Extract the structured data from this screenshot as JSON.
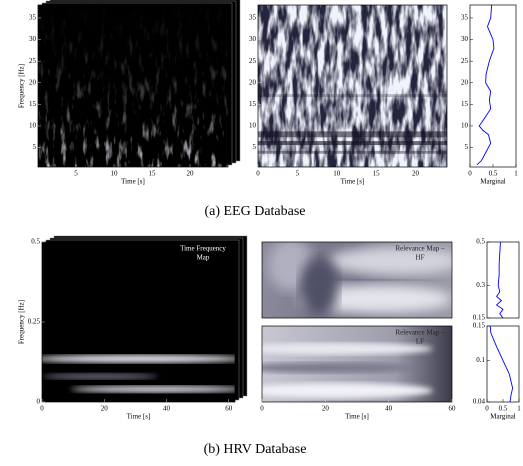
{
  "chart_data": [
    {
      "type": "heatmap",
      "xlim": [
        0,
        25
      ],
      "ylim": [
        0.5,
        38
      ],
      "xticks": [
        5,
        10,
        15,
        20
      ],
      "yticks": [
        5,
        10,
        15,
        20,
        25,
        30,
        35
      ],
      "xlabel": "Time [s]",
      "ylabel": "Frequency [Hz]"
    },
    {
      "type": "heatmap",
      "xlim": [
        0,
        24
      ],
      "ylim": [
        0.5,
        38
      ],
      "xticks": [
        0,
        5,
        10,
        15,
        20
      ],
      "yticks": [
        5,
        10,
        15,
        20,
        25,
        30,
        35
      ],
      "xlabel": "Time [s]"
    },
    {
      "type": "line",
      "orientation": "horizontal",
      "xlim": [
        0,
        1
      ],
      "ylim": [
        0.5,
        38
      ],
      "xticks": [
        0,
        0.5,
        1
      ],
      "yticks": [
        5,
        10,
        15,
        20,
        25,
        30,
        35
      ],
      "xlabel": "Marginal",
      "series": [
        {
          "color": "#0000ff",
          "x": [
            1,
            2,
            4,
            6,
            8,
            9,
            10,
            12,
            14,
            16,
            18,
            20,
            22,
            25,
            28,
            30,
            33,
            35,
            38
          ],
          "values": [
            0.15,
            0.25,
            0.35,
            0.45,
            0.4,
            0.28,
            0.2,
            0.33,
            0.45,
            0.42,
            0.45,
            0.34,
            0.35,
            0.42,
            0.52,
            0.5,
            0.38,
            0.45,
            0.47
          ]
        }
      ]
    },
    {
      "type": "heatmap",
      "xlim": [
        0,
        62
      ],
      "ylim": [
        0,
        0.5
      ],
      "xticks": [
        0,
        20,
        40,
        60
      ],
      "yticks": [
        0,
        0.25,
        0.5
      ],
      "xlabel": "Time [s]",
      "ylabel": "Frequency [Hz]",
      "annotation": [
        "Time Frequency",
        "Map"
      ]
    },
    {
      "type": "heatmap",
      "xlim": [
        0,
        60
      ],
      "ylim": [
        0.15,
        0.5
      ],
      "annotation": [
        "Relevance Map –",
        "HF"
      ]
    },
    {
      "type": "heatmap",
      "xlim": [
        0,
        60
      ],
      "ylim": [
        0.04,
        0.15
      ],
      "xticks": [
        0,
        20,
        40,
        60
      ],
      "xlabel": "Time [s]",
      "annotation": [
        "Relevance Map –",
        "LF"
      ]
    },
    {
      "type": "line",
      "orientation": "horizontal",
      "xlim": [
        0,
        1
      ],
      "ylim": [
        0.15,
        0.5
      ],
      "yticks": [
        0.15,
        0.3,
        0.5
      ],
      "series": [
        {
          "color": "#0000ff",
          "x": [
            0.15,
            0.17,
            0.19,
            0.21,
            0.23,
            0.25,
            0.27,
            0.3,
            0.35,
            0.4,
            0.45,
            0.5
          ],
          "values": [
            0.5,
            0.4,
            0.5,
            0.3,
            0.45,
            0.3,
            0.4,
            0.35,
            0.38,
            0.38,
            0.4,
            0.42
          ]
        }
      ]
    },
    {
      "type": "line",
      "orientation": "horizontal",
      "xlim": [
        0,
        1
      ],
      "ylim": [
        0.04,
        0.15
      ],
      "xticks": [
        0,
        0.5,
        1
      ],
      "yticks": [
        0.04,
        0.1,
        0.15
      ],
      "xlabel": "Marginal",
      "series": [
        {
          "color": "#0000ff",
          "x": [
            0.04,
            0.05,
            0.06,
            0.08,
            0.1,
            0.12,
            0.14,
            0.15
          ],
          "values": [
            0.72,
            0.75,
            0.8,
            0.7,
            0.5,
            0.3,
            0.12,
            0.1
          ]
        }
      ]
    }
  ],
  "captions": [
    "(a) EEG Database",
    "(b) HRV Database"
  ]
}
